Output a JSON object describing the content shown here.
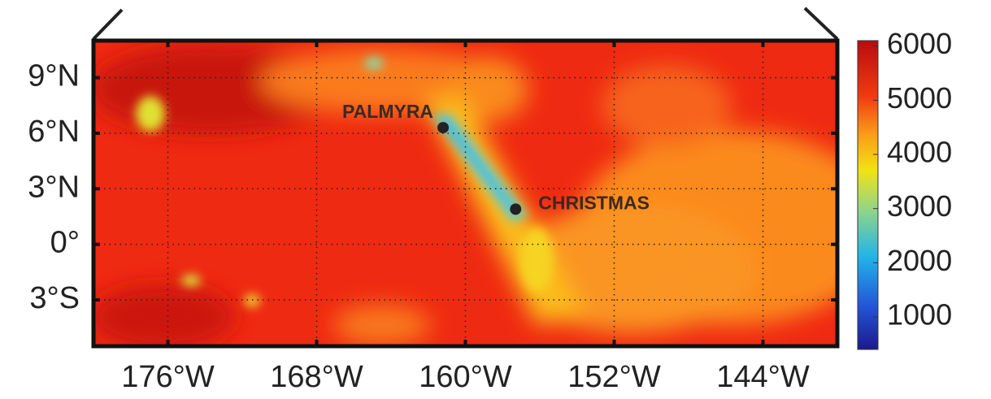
{
  "map": {
    "xlim": [
      -180,
      -140
    ],
    "ylim": [
      -5.5,
      11
    ],
    "xticks": [
      {
        "value": -176,
        "label": "176°W"
      },
      {
        "value": -168,
        "label": "168°W"
      },
      {
        "value": -160,
        "label": "160°W"
      },
      {
        "value": -152,
        "label": "152°W"
      },
      {
        "value": -144,
        "label": "144°W"
      }
    ],
    "yticks": [
      {
        "value": 9,
        "label": "9°N"
      },
      {
        "value": 6,
        "label": "6°N"
      },
      {
        "value": 3,
        "label": "3°N"
      },
      {
        "value": 0,
        "label": "0°"
      },
      {
        "value": -3,
        "label": "3°S"
      }
    ],
    "grid": true,
    "places": [
      {
        "name": "PALMYRA",
        "lon": -161.2,
        "lat": 6.3
      },
      {
        "name": "CHRISTMAS",
        "lon": -157.3,
        "lat": 1.9
      }
    ],
    "colorbar": {
      "lim": [
        400,
        6100
      ],
      "ticks": [
        1000,
        2000,
        3000,
        4000,
        5000,
        6000
      ]
    }
  }
}
